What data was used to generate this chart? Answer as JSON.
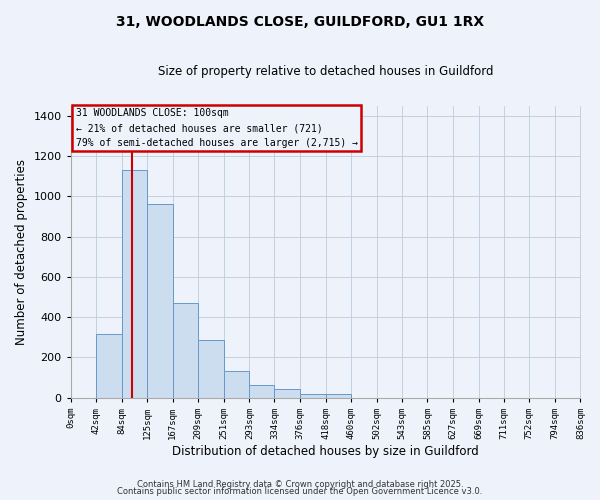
{
  "title": "31, WOODLANDS CLOSE, GUILDFORD, GU1 1RX",
  "subtitle": "Size of property relative to detached houses in Guildford",
  "xlabel": "Distribution of detached houses by size in Guildford",
  "ylabel": "Number of detached properties",
  "bar_values": [
    0,
    315,
    1130,
    960,
    470,
    285,
    130,
    65,
    45,
    20,
    20,
    0,
    0,
    0,
    0,
    0,
    0,
    0,
    0,
    0
  ],
  "bin_edges": [
    0,
    42,
    84,
    125,
    167,
    209,
    251,
    293,
    334,
    376,
    418,
    460,
    502,
    543,
    585,
    627,
    669,
    711,
    752,
    794,
    836
  ],
  "tick_labels": [
    "0sqm",
    "42sqm",
    "84sqm",
    "125sqm",
    "167sqm",
    "209sqm",
    "251sqm",
    "293sqm",
    "334sqm",
    "376sqm",
    "418sqm",
    "460sqm",
    "502sqm",
    "543sqm",
    "585sqm",
    "627sqm",
    "669sqm",
    "711sqm",
    "752sqm",
    "794sqm",
    "836sqm"
  ],
  "bar_color": "#ccddf0",
  "bar_edge_color": "#6699cc",
  "vline_x": 100,
  "vline_color": "#cc0000",
  "ylim": [
    0,
    1450
  ],
  "yticks": [
    0,
    200,
    400,
    600,
    800,
    1000,
    1200,
    1400
  ],
  "annotation_title": "31 WOODLANDS CLOSE: 100sqm",
  "annotation_line1": "← 21% of detached houses are smaller (721)",
  "annotation_line2": "79% of semi-detached houses are larger (2,715) →",
  "annotation_box_color": "#cc0000",
  "bg_color": "#eef2fa",
  "footer1": "Contains HM Land Registry data © Crown copyright and database right 2025.",
  "footer2": "Contains public sector information licensed under the Open Government Licence v3.0."
}
